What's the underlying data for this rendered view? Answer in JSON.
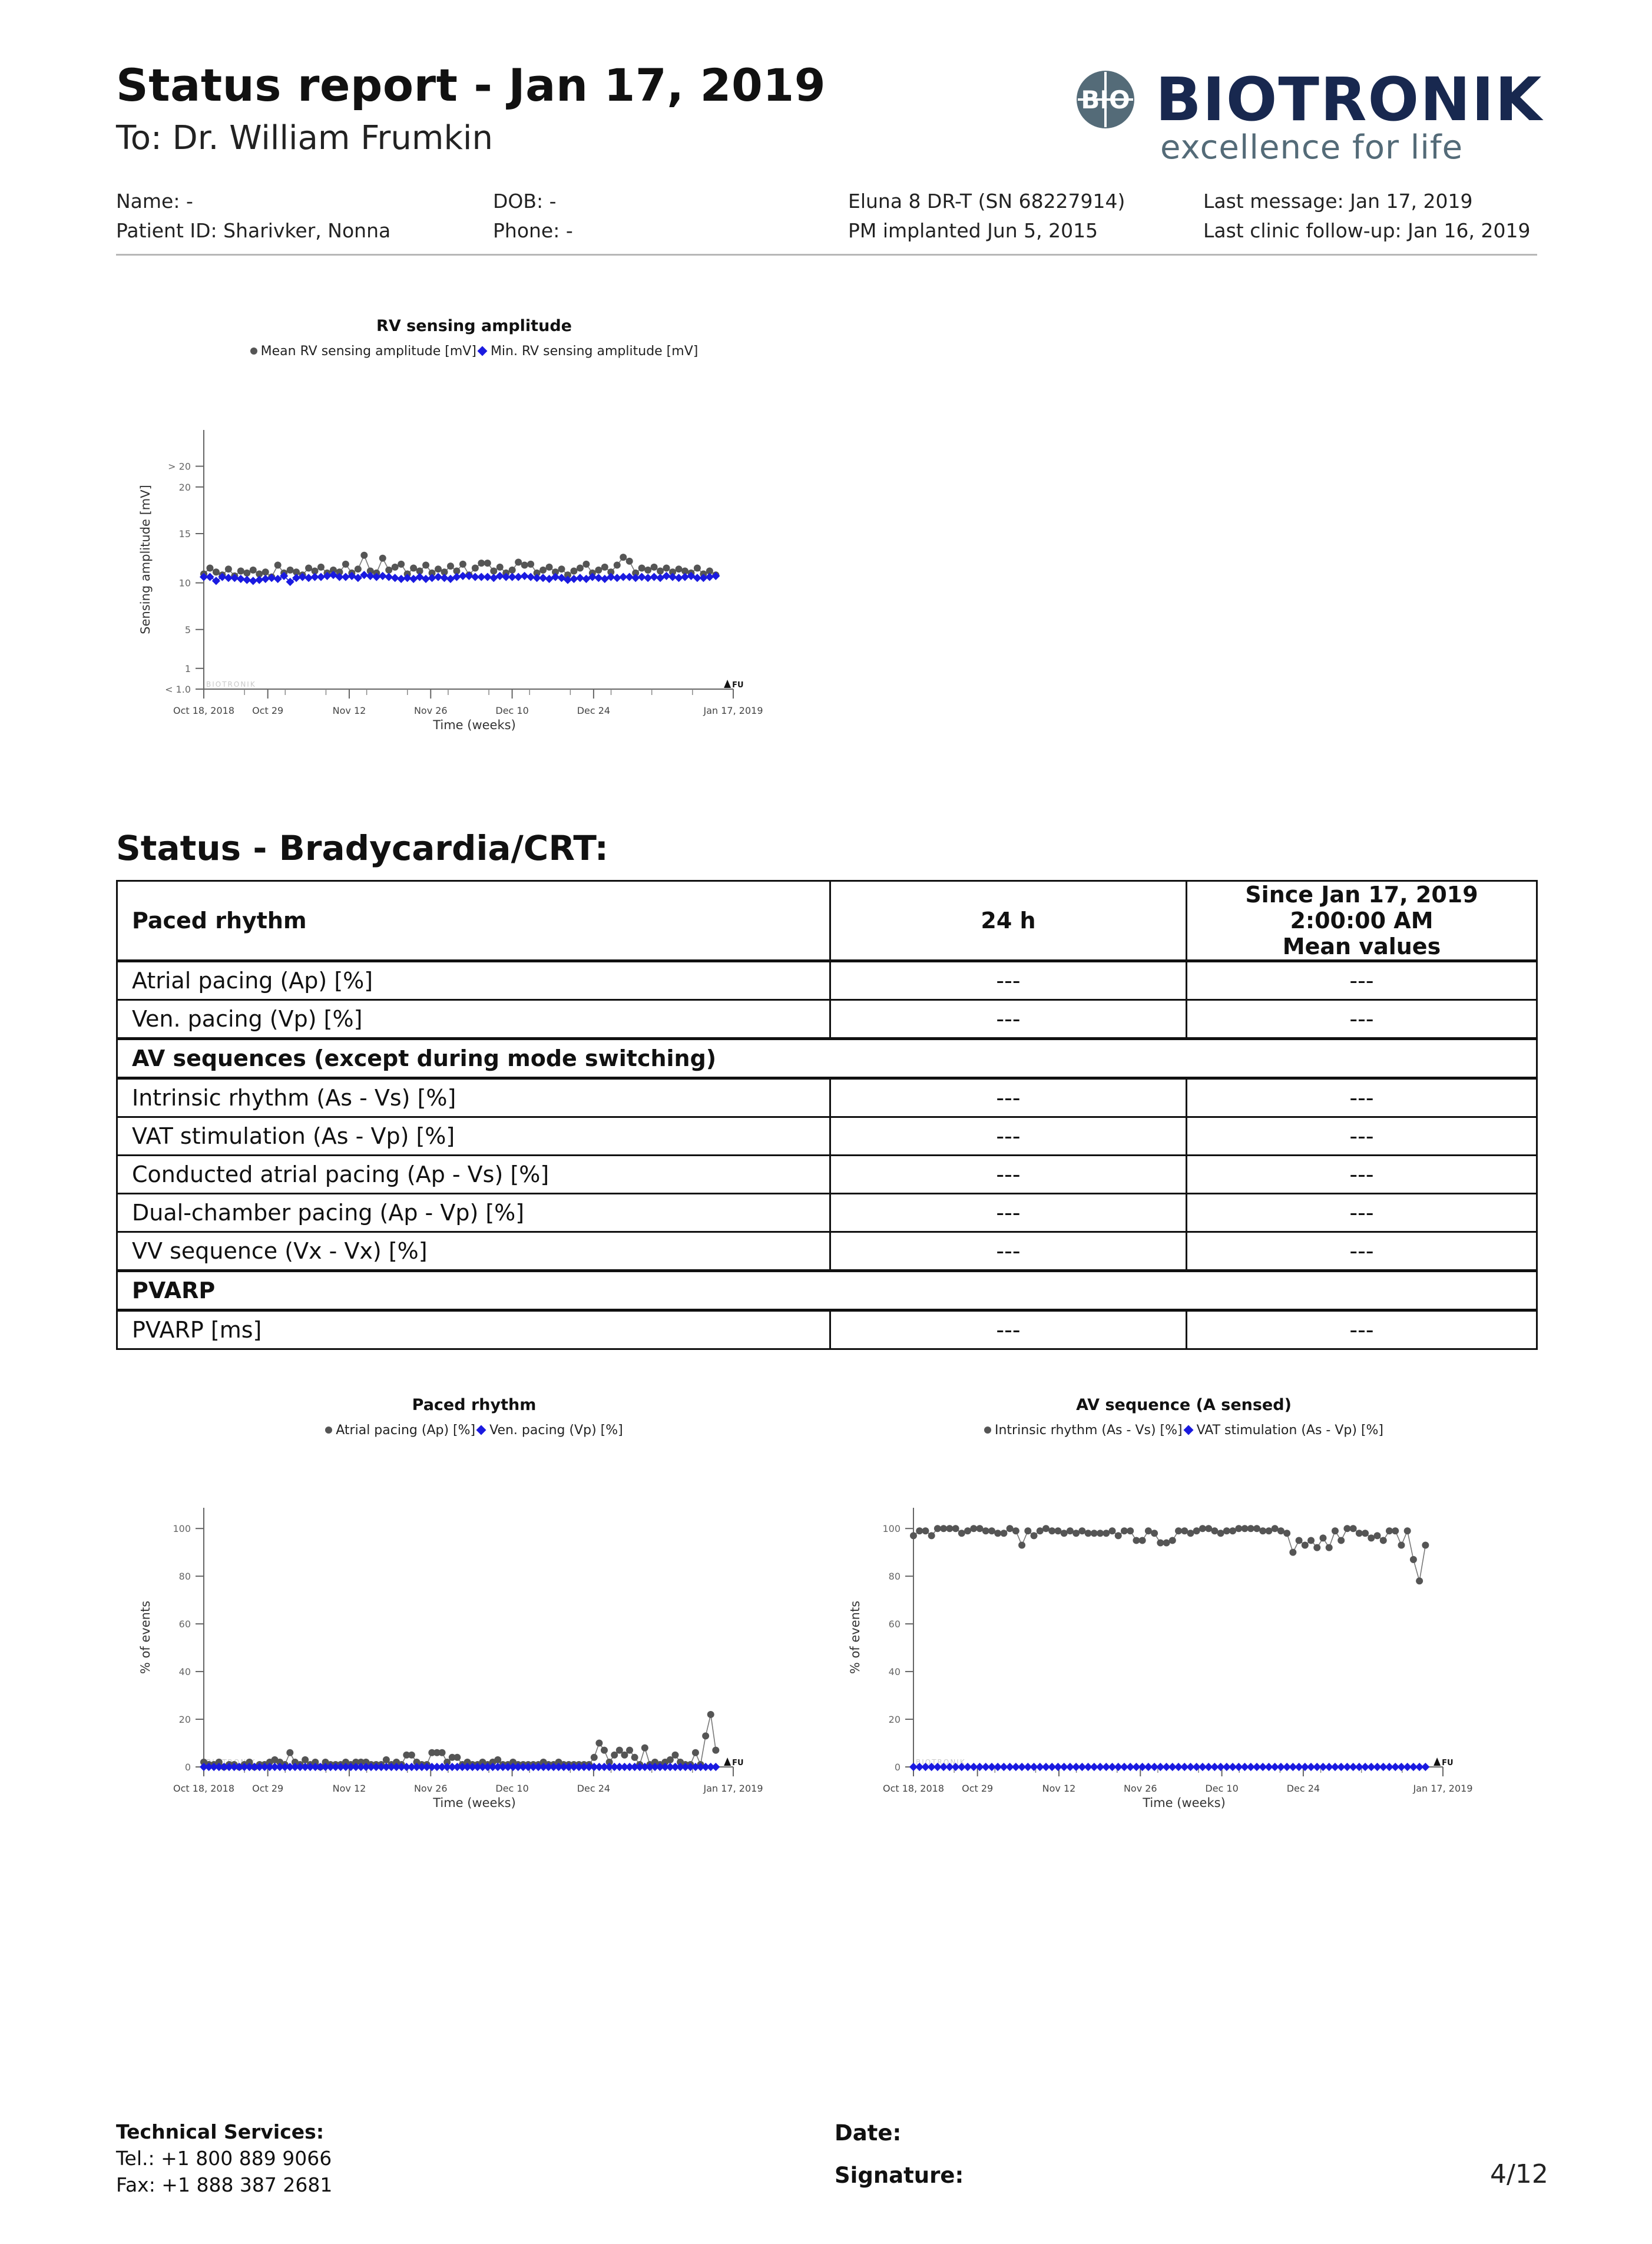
{
  "report": {
    "title": "Status report - Jan 17, 2019",
    "recipient": "To: Dr. William Frumkin"
  },
  "logo": {
    "wordmark": "BIOTRONIK",
    "tagline": "excellence for life",
    "emblem": "BIO"
  },
  "patient": {
    "name": "Name: -",
    "patient_id": "Patient ID: Sharivker, Nonna",
    "dob": "DOB: -",
    "phone": "Phone: -",
    "device": "Eluna 8 DR-T (SN 68227914)",
    "implanted": "PM implanted Jun 5, 2015",
    "last_message": "Last message: Jan 17, 2019",
    "last_followup": "Last clinic follow-up: Jan 16, 2019"
  },
  "charts": {
    "rv": {
      "title": "RV sensing amplitude",
      "legend_mean": "Mean RV sensing amplitude [mV]",
      "legend_min": "Min. RV sensing amplitude [mV]",
      "ylabel": "Sensing amplitude [mV]",
      "xlabel": "Time (weeks)",
      "watermark": "BIOTRONIK",
      "fu": "FU",
      "yticks": [
        "> 20",
        "20",
        "15",
        "10",
        "5",
        "1",
        "< 1.0"
      ],
      "xticks": [
        "Oct 18, 2018",
        "Oct 29",
        "Nov 12",
        "Nov 26",
        "Dec 10",
        "Dec 24",
        "Jan 17, 2019"
      ]
    },
    "paced": {
      "title": "Paced rhythm",
      "legend_a": "Atrial pacing (Ap) [%]",
      "legend_b": "Ven. pacing (Vp) [%]",
      "ylabel": "% of events",
      "xlabel": "Time (weeks)",
      "watermark": "BIOTRONIK",
      "fu": "FU",
      "yticks": [
        "100",
        "80",
        "60",
        "40",
        "20",
        "0"
      ],
      "xticks": [
        "Oct 18, 2018",
        "Oct 29",
        "Nov 12",
        "Nov 26",
        "Dec 10",
        "Dec 24",
        "Jan 17, 2019"
      ]
    },
    "av": {
      "title": "AV sequence (A sensed)",
      "legend_a": "Intrinsic rhythm (As - Vs) [%]",
      "legend_b": "VAT stimulation (As - Vp) [%]",
      "ylabel": "% of events",
      "xlabel": "Time (weeks)",
      "watermark": "BIOTRONIK",
      "fu": "FU",
      "yticks": [
        "100",
        "80",
        "60",
        "40",
        "20",
        "0"
      ],
      "xticks": [
        "Oct 18, 2018",
        "Oct 29",
        "Nov 12",
        "Nov 26",
        "Dec 10",
        "Dec 24",
        "Jan 17, 2019"
      ]
    }
  },
  "chart_data": [
    {
      "type": "scatter",
      "title": "RV sensing amplitude",
      "xlabel": "Time (weeks)",
      "ylabel": "Sensing amplitude [mV]",
      "x_range": [
        "2018-10-18",
        "2019-01-17"
      ],
      "ylim": [
        0,
        22
      ],
      "series": [
        {
          "name": "Mean RV sensing amplitude [mV]",
          "color": "#555555",
          "values": [
            10.9,
            11.5,
            11.1,
            10.8,
            11.4,
            10.7,
            11.2,
            11.0,
            11.3,
            10.9,
            11.1,
            10.6,
            11.8,
            11.0,
            11.3,
            11.1,
            10.8,
            11.5,
            11.2,
            11.6,
            11.0,
            11.3,
            11.1,
            11.9,
            11.0,
            11.4,
            12.8,
            11.2,
            11.0,
            12.5,
            11.3,
            11.6,
            11.9,
            10.9,
            11.5,
            11.2,
            11.8,
            11.0,
            11.4,
            11.1,
            11.7,
            11.2,
            11.9,
            10.8,
            11.5,
            12.0,
            12.0,
            11.2,
            11.6,
            11.0,
            11.3,
            12.1,
            11.8,
            11.9,
            11.0,
            11.3,
            11.6,
            11.1,
            11.4,
            10.8,
            11.2,
            11.5,
            11.9,
            11.0,
            11.3,
            11.6,
            11.1,
            11.8,
            12.6,
            12.2,
            11.0,
            11.5,
            11.3,
            11.6,
            11.2,
            11.5,
            11.1,
            11.4,
            11.2,
            11.0,
            11.5,
            10.9,
            11.2,
            10.8
          ]
        },
        {
          "name": "Min. RV sensing amplitude [mV]",
          "color": "#1a1ae0",
          "values": [
            10.6,
            10.6,
            10.2,
            10.6,
            10.5,
            10.5,
            10.4,
            10.3,
            10.2,
            10.3,
            10.4,
            10.5,
            10.4,
            10.7,
            10.1,
            10.5,
            10.6,
            10.5,
            10.6,
            10.6,
            10.7,
            10.8,
            10.6,
            10.6,
            10.7,
            10.5,
            10.8,
            10.7,
            10.6,
            10.7,
            10.6,
            10.5,
            10.4,
            10.5,
            10.4,
            10.6,
            10.4,
            10.5,
            10.6,
            10.5,
            10.4,
            10.6,
            10.7,
            10.7,
            10.6,
            10.6,
            10.6,
            10.5,
            10.7,
            10.6,
            10.6,
            10.6,
            10.7,
            10.6,
            10.5,
            10.5,
            10.4,
            10.6,
            10.5,
            10.3,
            10.4,
            10.5,
            10.4,
            10.6,
            10.5,
            10.4,
            10.6,
            10.5,
            10.6,
            10.6,
            10.5,
            10.6,
            10.5,
            10.6,
            10.5,
            10.7,
            10.6,
            10.5,
            10.6,
            10.7,
            10.5,
            10.5,
            10.6,
            10.7
          ]
        }
      ]
    },
    {
      "type": "scatter",
      "title": "Paced rhythm",
      "xlabel": "Time (weeks)",
      "ylabel": "% of events",
      "x_range": [
        "2018-10-18",
        "2019-01-17"
      ],
      "ylim": [
        0,
        100
      ],
      "series": [
        {
          "name": "Atrial pacing (Ap) [%]",
          "color": "#555555",
          "values": [
            2,
            1,
            1,
            2,
            0,
            1,
            1,
            0,
            1,
            2,
            0,
            1,
            1,
            2,
            3,
            2,
            1,
            6,
            2,
            1,
            3,
            1,
            2,
            0,
            2,
            1,
            1,
            1,
            2,
            1,
            2,
            2,
            2,
            1,
            1,
            1,
            3,
            1,
            2,
            1,
            5,
            5,
            2,
            1,
            1,
            6,
            6,
            6,
            2,
            4,
            4,
            1,
            2,
            1,
            1,
            2,
            1,
            2,
            3,
            1,
            1,
            2,
            1,
            1,
            1,
            1,
            1,
            2,
            1,
            1,
            2,
            1,
            1,
            1,
            1,
            1,
            1,
            4,
            10,
            7,
            2,
            5,
            7,
            5,
            7,
            4,
            1,
            8,
            1,
            2,
            1,
            2,
            3,
            5,
            2,
            1,
            1,
            6,
            1,
            13,
            22,
            7
          ]
        },
        {
          "name": "Ven. pacing (Vp) [%]",
          "color": "#1a1ae0",
          "values": [
            0,
            0,
            0,
            0,
            0,
            0,
            0,
            0,
            0,
            0,
            0,
            0,
            0,
            0,
            0,
            0,
            0,
            0,
            0,
            0,
            0,
            0,
            0,
            0,
            0,
            0,
            0,
            0,
            0,
            0,
            0,
            0,
            0,
            0,
            0,
            0,
            0,
            0,
            0,
            0,
            0,
            0,
            0,
            0,
            0,
            0,
            0,
            0,
            0,
            0,
            0,
            0,
            0,
            0,
            0,
            0,
            0,
            0,
            0,
            0,
            0,
            0,
            0,
            0,
            0,
            0,
            0,
            0,
            0,
            0,
            0,
            0,
            0,
            0,
            0,
            0,
            0,
            0,
            0,
            0,
            0,
            0,
            0,
            0,
            0,
            0,
            0,
            0,
            0,
            0,
            0,
            0,
            0,
            0,
            0,
            0,
            0,
            0,
            0,
            0,
            0,
            0
          ]
        }
      ]
    },
    {
      "type": "scatter",
      "title": "AV sequence (A sensed)",
      "xlabel": "Time (weeks)",
      "ylabel": "% of events",
      "x_range": [
        "2018-10-18",
        "2019-01-17"
      ],
      "ylim": [
        0,
        100
      ],
      "series": [
        {
          "name": "Intrinsic rhythm (As - Vs) [%]",
          "color": "#555555",
          "values": [
            97,
            99,
            99,
            97,
            100,
            100,
            100,
            100,
            98,
            99,
            100,
            100,
            99,
            99,
            98,
            98,
            100,
            99,
            93,
            99,
            97,
            99,
            100,
            99,
            99,
            98,
            99,
            98,
            99,
            98,
            98,
            98,
            98,
            99,
            97,
            99,
            99,
            95,
            95,
            99,
            98,
            94,
            94,
            95,
            99,
            99,
            98,
            99,
            100,
            100,
            99,
            98,
            99,
            99,
            100,
            100,
            100,
            100,
            99,
            99,
            100,
            99,
            98,
            90,
            95,
            93,
            95,
            92,
            96,
            92,
            99,
            95,
            100,
            100,
            98,
            98,
            96,
            97,
            95,
            99,
            99,
            93,
            99,
            87,
            78,
            93
          ]
        },
        {
          "name": "VAT stimulation (As - Vp) [%]",
          "color": "#1a1ae0",
          "values": [
            0,
            0,
            0,
            0,
            0,
            0,
            0,
            0,
            0,
            0,
            0,
            0,
            0,
            0,
            0,
            0,
            0,
            0,
            0,
            0,
            0,
            0,
            0,
            0,
            0,
            0,
            0,
            0,
            0,
            0,
            0,
            0,
            0,
            0,
            0,
            0,
            0,
            0,
            0,
            0,
            0,
            0,
            0,
            0,
            0,
            0,
            0,
            0,
            0,
            0,
            0,
            0,
            0,
            0,
            0,
            0,
            0,
            0,
            0,
            0,
            0,
            0,
            0,
            0,
            0,
            0,
            0,
            0,
            0,
            0,
            0,
            0,
            0,
            0,
            0,
            0,
            0,
            0,
            0,
            0,
            0,
            0,
            0,
            0,
            0,
            0
          ]
        }
      ]
    }
  ],
  "section": {
    "title": "Status - Bradycardia/CRT:"
  },
  "table": {
    "head": {
      "c1": "Paced rhythm",
      "c2": "24 h",
      "c3a": "Since Jan 17, 2019 2:00:00 AM",
      "c3b": "Mean values"
    },
    "r1": {
      "label": "Atrial pacing (Ap) [%]",
      "v24": "---",
      "vmean": "---"
    },
    "r2": {
      "label": "Ven. pacing (Vp) [%]",
      "v24": "---",
      "vmean": "---"
    },
    "s1": "AV sequences (except during mode switching)",
    "r3": {
      "label": "Intrinsic rhythm (As - Vs) [%]",
      "v24": "---",
      "vmean": "---"
    },
    "r4": {
      "label": "VAT stimulation (As - Vp) [%]",
      "v24": "---",
      "vmean": "---"
    },
    "r5": {
      "label": "Conducted atrial pacing (Ap - Vs) [%]",
      "v24": "---",
      "vmean": "---"
    },
    "r6": {
      "label": "Dual-chamber pacing (Ap - Vp) [%]",
      "v24": "---",
      "vmean": "---"
    },
    "r7": {
      "label": "VV sequence (Vx - Vx) [%]",
      "v24": "---",
      "vmean": "---"
    },
    "s2": "PVARP",
    "r8": {
      "label": "PVARP [ms]",
      "v24": "---",
      "vmean": "---"
    }
  },
  "footer": {
    "tech_title": "Technical Services:",
    "tel": "Tel.: +1 800 889 9066",
    "fax": "Fax: +1 888 387 2681",
    "date_label": "Date:",
    "signature_label": "Signature:",
    "page": "4/12"
  }
}
